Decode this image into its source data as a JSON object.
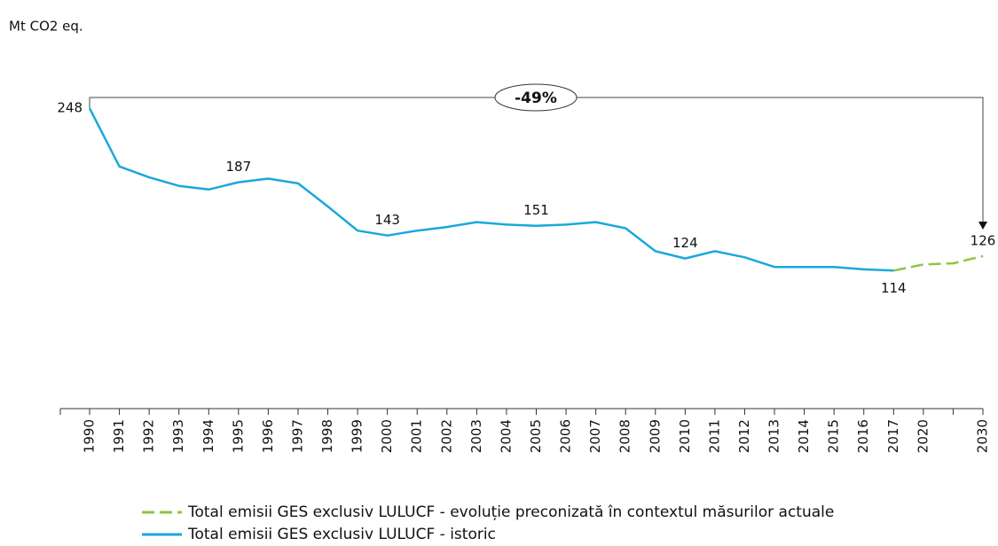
{
  "chart_data": {
    "type": "line",
    "y_label": "Mt CO2 eq.",
    "annotation": "-49%",
    "categories": [
      "1990",
      "1991",
      "1992",
      "1993",
      "1994",
      "1995",
      "1996",
      "1997",
      "1998",
      "1999",
      "2000",
      "2001",
      "2002",
      "2003",
      "2004",
      "2005",
      "2006",
      "2007",
      "2008",
      "2009",
      "2010",
      "2011",
      "2012",
      "2013",
      "2014",
      "2015",
      "2016",
      "2017",
      "2020",
      null,
      "2030"
    ],
    "ylim": [
      0,
      250
    ],
    "series": [
      {
        "name": "Total emisii GES exclusiv LULUCF - evoluție preconizată în contextul măsurilor actuale",
        "color": "#8dc63f",
        "dashed": true,
        "values": [
          null,
          null,
          null,
          null,
          null,
          null,
          null,
          null,
          null,
          null,
          null,
          null,
          null,
          null,
          null,
          null,
          null,
          null,
          null,
          null,
          null,
          null,
          null,
          null,
          null,
          null,
          null,
          114,
          119,
          120,
          126
        ],
        "value_labels": [
          null,
          null,
          null,
          null,
          null,
          null,
          null,
          null,
          null,
          null,
          null,
          null,
          null,
          null,
          null,
          null,
          null,
          null,
          null,
          null,
          null,
          null,
          null,
          null,
          null,
          null,
          null,
          null,
          null,
          null,
          "126"
        ]
      },
      {
        "name": "Total emisii GES exclusiv LULUCF - istoric",
        "color": "#1aa8dc",
        "dashed": false,
        "values": [
          248,
          200,
          191,
          184,
          181,
          187,
          190,
          186,
          167,
          147,
          143,
          147,
          150,
          154,
          152,
          151,
          152,
          154,
          149,
          130,
          124,
          130,
          125,
          117,
          117,
          117,
          115,
          114,
          null,
          null,
          null
        ],
        "value_labels": [
          "248",
          null,
          null,
          null,
          null,
          "187",
          null,
          null,
          null,
          null,
          "143",
          null,
          null,
          null,
          null,
          "151",
          null,
          null,
          null,
          null,
          "124",
          null,
          null,
          null,
          null,
          null,
          null,
          "114",
          null,
          null,
          null
        ]
      }
    ]
  }
}
